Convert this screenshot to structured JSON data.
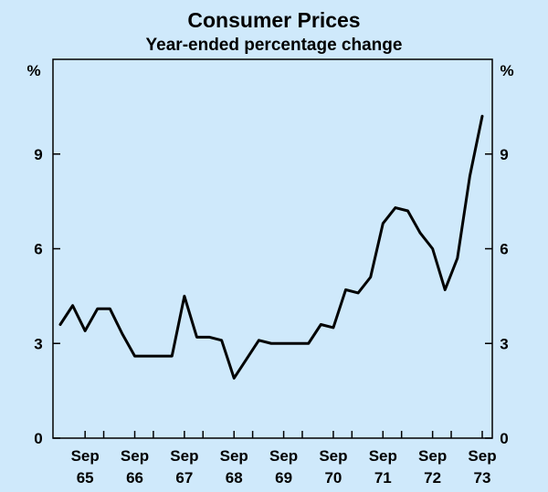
{
  "chart_data": {
    "type": "line",
    "title": "Consumer Prices",
    "subtitle": "Year-ended percentage change",
    "y_unit_left": "%",
    "y_unit_right": "%",
    "ylim": [
      0,
      12
    ],
    "yticks": [
      0,
      3,
      6,
      9
    ],
    "grid": false,
    "colors": {
      "background": "#cfe9fb",
      "plot": "#cfe9fb",
      "line": "#000000"
    },
    "x_tick_labels": [
      {
        "month": "Sep",
        "year": "65"
      },
      {
        "month": "Sep",
        "year": "66"
      },
      {
        "month": "Sep",
        "year": "67"
      },
      {
        "month": "Sep",
        "year": "68"
      },
      {
        "month": "Sep",
        "year": "69"
      },
      {
        "month": "Sep",
        "year": "70"
      },
      {
        "month": "Sep",
        "year": "71"
      },
      {
        "month": "Sep",
        "year": "72"
      },
      {
        "month": "Sep",
        "year": "73"
      }
    ],
    "series": [
      {
        "x": [
          "Mar 65",
          "Jun 65",
          "Sep 65",
          "Dec 65",
          "Mar 66",
          "Jun 66",
          "Sep 66",
          "Dec 66",
          "Mar 67",
          "Jun 67",
          "Sep 67",
          "Dec 67",
          "Mar 68",
          "Jun 68",
          "Sep 68",
          "Dec 68",
          "Mar 69",
          "Jun 69",
          "Sep 69",
          "Dec 69",
          "Mar 70",
          "Jun 70",
          "Sep 70",
          "Dec 70",
          "Mar 71",
          "Jun 71",
          "Sep 71",
          "Dec 71",
          "Mar 72",
          "Jun 72",
          "Sep 72",
          "Dec 72",
          "Mar 73",
          "Jun 73",
          "Sep 73"
        ],
        "values": [
          3.6,
          4.2,
          3.4,
          4.1,
          4.1,
          3.3,
          2.6,
          2.6,
          2.6,
          2.6,
          4.5,
          3.2,
          3.2,
          3.1,
          1.9,
          2.5,
          3.1,
          3.0,
          3.0,
          3.0,
          3.0,
          3.6,
          3.5,
          4.7,
          4.6,
          5.1,
          6.8,
          7.3,
          7.2,
          6.5,
          6.0,
          4.7,
          5.7,
          8.3,
          10.2
        ]
      }
    ]
  }
}
